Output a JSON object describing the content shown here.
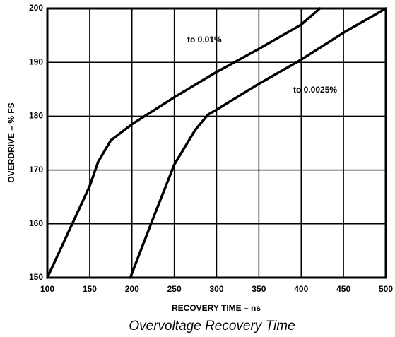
{
  "chart_data": {
    "type": "line",
    "title": "Overvoltage Recovery Time",
    "x_label": "RECOVERY TIME – ns",
    "y_label": "OVERDRIVE – % FS",
    "series": [
      {
        "name": "to 0.01%",
        "color": "#000000",
        "x": [
          100,
          125,
          150,
          160,
          175,
          200,
          225,
          250,
          300,
          350,
          400,
          422
        ],
        "values": [
          150,
          158.5,
          167,
          171.5,
          175.5,
          178.5,
          181,
          183.5,
          188.2,
          192.5,
          197,
          200
        ]
      },
      {
        "name": "to 0.0025%",
        "color": "#000000",
        "x": [
          198,
          225,
          250,
          275,
          290,
          300,
          350,
          400,
          450,
          500
        ],
        "values": [
          150,
          161,
          171,
          177.5,
          180.3,
          181.2,
          186,
          190.5,
          195.5,
          200
        ]
      }
    ],
    "xlim": [
      100,
      500
    ],
    "xticks": [
      100,
      150,
      200,
      250,
      300,
      350,
      400,
      450,
      500
    ],
    "ylim": [
      150,
      200
    ],
    "yticks": [
      150,
      160,
      170,
      180,
      190,
      200
    ],
    "grid": true
  }
}
